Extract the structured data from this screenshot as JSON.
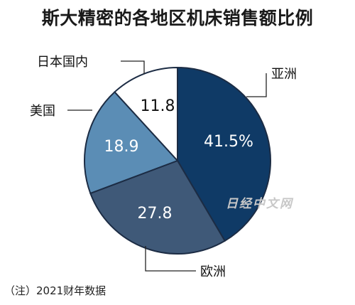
{
  "title": "斯大精密的各地区机床销售额比例",
  "footnote": "（注）2021财年数据",
  "watermark": "日经中文网",
  "chart_data": {
    "type": "pie",
    "title": "斯大精密的各地区机床销售额比例",
    "start": "12 o'clock",
    "direction": "clockwise",
    "slices": [
      {
        "label": "亚洲",
        "value": 41.5,
        "display": "41.5%",
        "color": "#0f3a66",
        "text_color": "#ffffff"
      },
      {
        "label": "欧洲",
        "value": 27.8,
        "display": "27.8",
        "color": "#3f5978",
        "text_color": "#ffffff"
      },
      {
        "label": "美国",
        "value": 18.9,
        "display": "18.9",
        "color": "#5b8db5",
        "text_color": "#ffffff"
      },
      {
        "label": "日本国内",
        "value": 11.8,
        "display": "11.8",
        "color": "#ffffff",
        "text_color": "#111111"
      }
    ]
  }
}
